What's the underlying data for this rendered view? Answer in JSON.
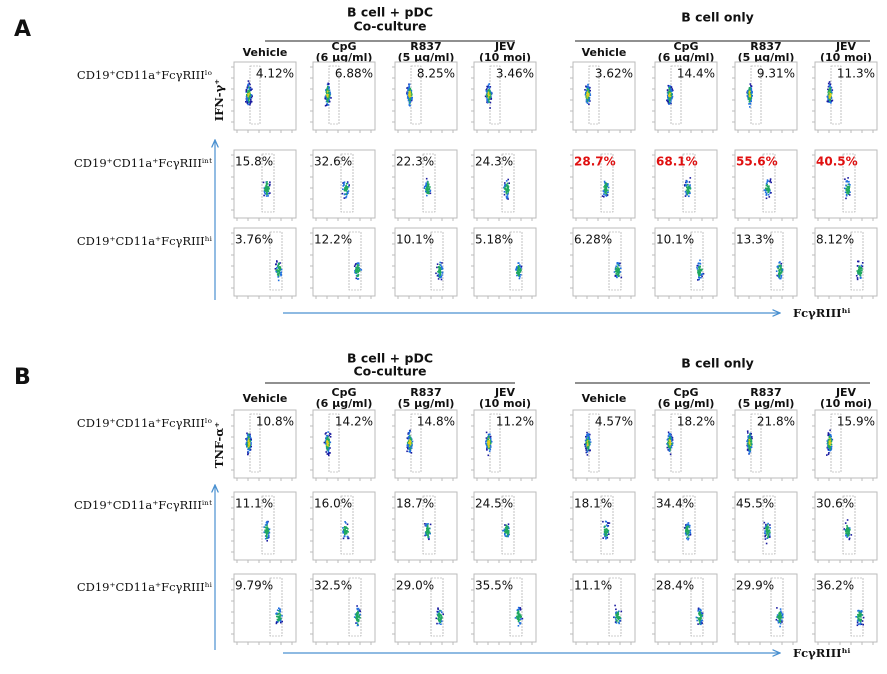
{
  "panels": [
    {
      "label": "A",
      "y_axis": "IFN-γ⁺",
      "x_axis": "FcγRIIIʰⁱ",
      "groups": [
        {
          "title": [
            "B cell + pDC",
            "Co-culture"
          ],
          "columns": [
            [
              "Vehicle"
            ],
            [
              "CpG",
              "(6 μg/ml)"
            ],
            [
              "R837",
              "(5 μg/ml)"
            ],
            [
              "JEV",
              "(10 moi)"
            ]
          ]
        },
        {
          "title": [
            "B cell only"
          ],
          "columns": [
            [
              "Vehicle"
            ],
            [
              "CpG",
              "(6 μg/ml)"
            ],
            [
              "R837",
              "(5 μg/ml)"
            ],
            [
              "JEV",
              "(10 moi)"
            ]
          ]
        }
      ],
      "rows": [
        {
          "label": "CD19⁺CD11a⁺FcγRIIIˡᵒ",
          "values": [
            "4.12%",
            "6.88%",
            "8.25%",
            "3.46%",
            "3.62%",
            "14.4%",
            "9.31%",
            "11.3%"
          ]
        },
        {
          "label": "CD19⁺CD11a⁺FcγRIIIⁱⁿᵗ",
          "values": [
            "15.8%",
            "32.6%",
            "22.3%",
            "24.3%",
            "28.7%",
            "68.1%",
            "55.6%",
            "40.5%"
          ]
        },
        {
          "label": "CD19⁺CD11a⁺FcγRIIIʰⁱ",
          "values": [
            "3.76%",
            "12.2%",
            "10.1%",
            "5.18%",
            "6.28%",
            "10.1%",
            "13.3%",
            "8.12%"
          ]
        }
      ]
    },
    {
      "label": "B",
      "y_axis": "TNF-α⁺",
      "x_axis": "FcγRIIIʰⁱ",
      "groups": [
        {
          "title": [
            "B cell + pDC",
            "Co-culture"
          ],
          "columns": [
            [
              "Vehicle"
            ],
            [
              "CpG",
              "(6 μg/ml)"
            ],
            [
              "R837",
              "(5 μg/ml)"
            ],
            [
              "JEV",
              "(10 moi)"
            ]
          ]
        },
        {
          "title": [
            "B cell only"
          ],
          "columns": [
            [
              "Vehicle"
            ],
            [
              "CpG",
              "(6 μg/ml)"
            ],
            [
              "R837",
              "(5 μg/ml)"
            ],
            [
              "JEV",
              "(10 moi)"
            ]
          ]
        }
      ],
      "rows": [
        {
          "label": "CD19⁺CD11a⁺FcγRIIIˡᵒ",
          "values": [
            "10.8%",
            "14.2%",
            "14.8%",
            "11.2%",
            "4.57%",
            "18.2%",
            "21.8%",
            "15.9%"
          ]
        },
        {
          "label": "CD19⁺CD11a⁺FcγRIIIⁱⁿᵗ",
          "values": [
            "11.1%",
            "16.0%",
            "18.7%",
            "24.5%",
            "18.1%",
            "34.4%",
            "45.5%",
            "30.6%"
          ]
        },
        {
          "label": "CD19⁺CD11a⁺FcγRIIIʰⁱ",
          "values": [
            "9.79%",
            "32.5%",
            "29.0%",
            "35.5%",
            "11.1%",
            "28.4%",
            "29.9%",
            "36.2%"
          ]
        }
      ]
    }
  ]
}
